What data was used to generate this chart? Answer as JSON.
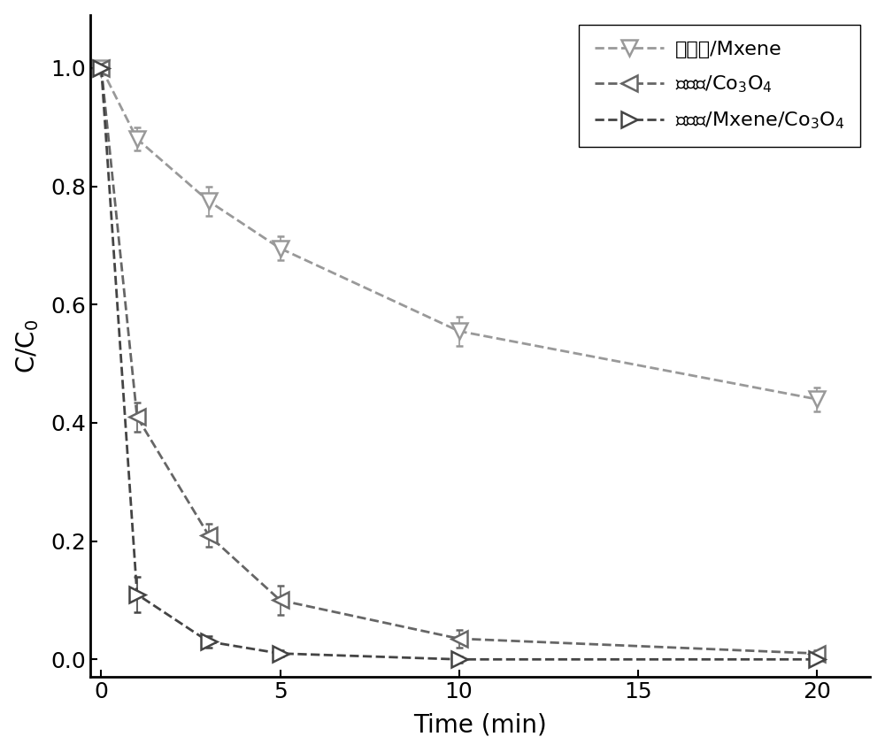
{
  "series": [
    {
      "label_cn": "泡沫镖/Mxene",
      "label_math": "泡沫镖/Mxene",
      "color": "#999999",
      "marker": "v",
      "x": [
        0,
        1,
        3,
        5,
        10,
        20
      ],
      "y": [
        1.0,
        0.88,
        0.775,
        0.695,
        0.555,
        0.44
      ],
      "yerr": [
        0.0,
        0.02,
        0.025,
        0.02,
        0.025,
        0.02
      ]
    },
    {
      "label_cn": "泡沫镖/Co₃O₄",
      "label_math": "泡沫镖/Co$_3$O$_4$",
      "color": "#666666",
      "marker": "<",
      "x": [
        0,
        1,
        3,
        5,
        10,
        20
      ],
      "y": [
        1.0,
        0.41,
        0.21,
        0.1,
        0.035,
        0.01
      ],
      "yerr": [
        0.0,
        0.025,
        0.02,
        0.025,
        0.015,
        0.005
      ]
    },
    {
      "label_cn": "泡沫镖/Mxene/Co₃O₄",
      "label_math": "泡沫镖/Mxene/Co$_3$O$_4$",
      "color": "#444444",
      "marker": ">",
      "x": [
        0,
        1,
        3,
        5,
        10,
        20
      ],
      "y": [
        1.0,
        0.11,
        0.03,
        0.01,
        0.0,
        0.0
      ],
      "yerr": [
        0.0,
        0.03,
        0.01,
        0.005,
        0.005,
        0.003
      ]
    }
  ],
  "xlabel": "Time (min)",
  "ylabel": "C/C$_0$",
  "xlim": [
    -0.3,
    21.5
  ],
  "ylim": [
    -0.03,
    1.09
  ],
  "xticks": [
    0,
    5,
    10,
    15,
    20
  ],
  "yticks": [
    0.0,
    0.2,
    0.4,
    0.6,
    0.8,
    1.0
  ],
  "background_color": "#ffffff",
  "marker_size": 13,
  "linewidth": 2.0,
  "capsize": 3,
  "elinewidth": 1.2
}
